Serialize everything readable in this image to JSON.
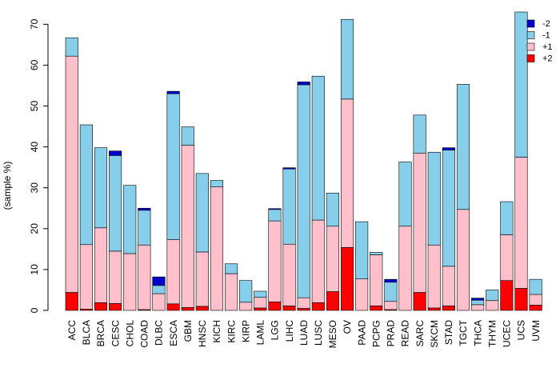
{
  "chart_data": {
    "type": "bar",
    "stacked": true,
    "title": "",
    "xlabel": "",
    "ylabel": "(sample %)",
    "ylim": [
      0,
      73
    ],
    "yticks": [
      0,
      10,
      20,
      30,
      40,
      50,
      60,
      70
    ],
    "grid": false,
    "legend_position": "top-right",
    "categories": [
      "ACC",
      "BLCA",
      "BRCA",
      "CESC",
      "CHOL",
      "COAD",
      "DLBC",
      "ESCA",
      "GBM",
      "HNSC",
      "KICH",
      "KIRC",
      "KIRP",
      "LAML",
      "LGG",
      "LIHC",
      "LUAD",
      "LUSC",
      "MESO",
      "OV",
      "PAAD",
      "PCPG",
      "PRAD",
      "READ",
      "SARC",
      "SKCM",
      "STAD",
      "TGCT",
      "THCA",
      "THYM",
      "UCEC",
      "UCS",
      "UVM"
    ],
    "series": [
      {
        "name": "+2",
        "color": "#ff0000",
        "values": [
          4.4,
          0.3,
          1.9,
          1.7,
          0,
          0.2,
          0,
          1.6,
          0.7,
          1.0,
          0,
          0,
          0,
          0.6,
          2.1,
          1.1,
          0.5,
          1.9,
          4.6,
          15.4,
          0,
          1.1,
          0.2,
          0,
          4.4,
          0.6,
          1.1,
          0,
          0,
          0,
          7.3,
          5.4,
          1.3
        ]
      },
      {
        "name": "+1",
        "color": "#ffc0cb",
        "values": [
          57.8,
          15.8,
          18.3,
          12.8,
          13.9,
          15.8,
          4.1,
          15.7,
          39.7,
          13.3,
          30.2,
          9.0,
          2.0,
          2.6,
          19.8,
          15.1,
          2.6,
          20.2,
          16.0,
          36.3,
          7.7,
          12.5,
          2.0,
          20.6,
          34.1,
          15.4,
          9.7,
          24.7,
          1.4,
          2.4,
          11.2,
          32.1,
          2.6
        ]
      },
      {
        "name": "-1",
        "color": "#87ceeb",
        "values": [
          4.5,
          29.3,
          19.6,
          23.4,
          16.7,
          8.5,
          2.0,
          35.7,
          4.5,
          19.2,
          1.6,
          2.4,
          5.3,
          1.5,
          2.8,
          18.4,
          52.1,
          35.2,
          8.1,
          19.5,
          14.0,
          0.6,
          4.7,
          15.7,
          9.3,
          22.7,
          28.4,
          30.6,
          1.1,
          2.6,
          8.1,
          35.5,
          3.7
        ]
      },
      {
        "name": "-2",
        "color": "#0000cd",
        "values": [
          0,
          0,
          0,
          1.1,
          0,
          0.5,
          2.1,
          0.6,
          0,
          0,
          0,
          0,
          0,
          0,
          0.2,
          0.3,
          0.7,
          0,
          0,
          0,
          0,
          0,
          0.7,
          0,
          0,
          0,
          0.6,
          0,
          0.5,
          0,
          0,
          0,
          0
        ]
      }
    ]
  }
}
